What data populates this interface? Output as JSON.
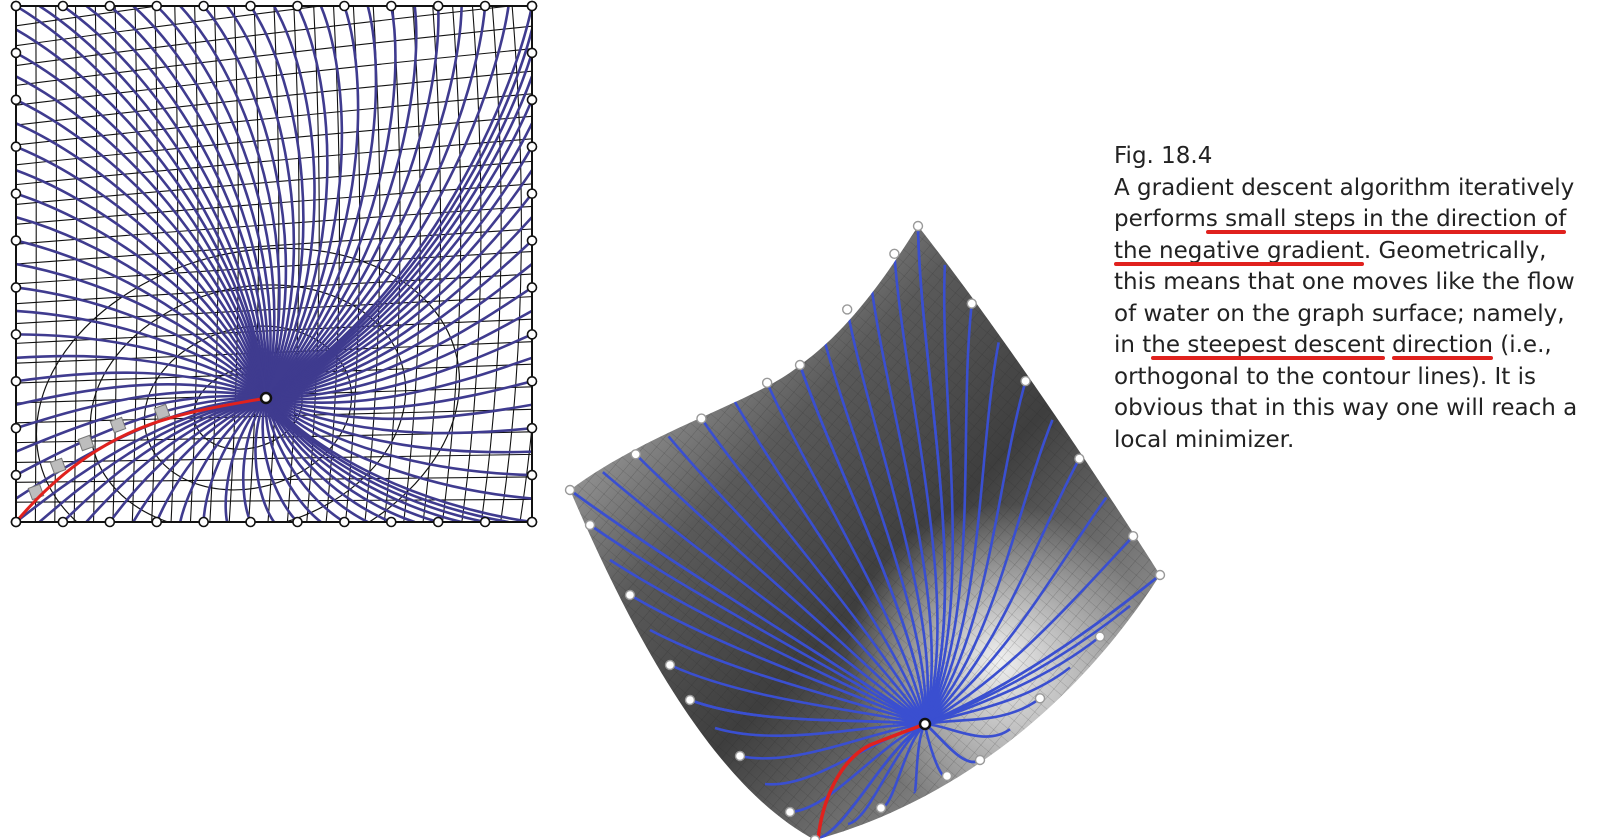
{
  "figure": {
    "label": "Fig. 18.4",
    "caption_parts": [
      {
        "text": "A gradient descent algorithm iteratively perform",
        "hl": false
      },
      {
        "text": "s small steps in the direction of",
        "hl": true
      },
      {
        "text": " ",
        "hl": false
      },
      {
        "text": "the negative gradient",
        "hl": true
      },
      {
        "text": ". Geometrically, this means that one moves like the flow of water on the graph surface; namely, in t",
        "hl": false
      },
      {
        "text": "he steepest descent",
        "hl": true
      },
      {
        "text": " ",
        "hl": false
      },
      {
        "text": "direction",
        "hl": true
      },
      {
        "text": " (i.e., orthogonal to the contour lines). It is obvious that in this way one will reach a local minimizer.",
        "hl": false
      }
    ]
  },
  "colors": {
    "flow_line": "#3f3b8f",
    "flow_line_3d": "#3a4fd0",
    "path": "#e0211d",
    "grid": "#111111",
    "surface_dark": "#3c3c3c",
    "surface_light": "#ececec",
    "underline": "#e0211d"
  }
}
